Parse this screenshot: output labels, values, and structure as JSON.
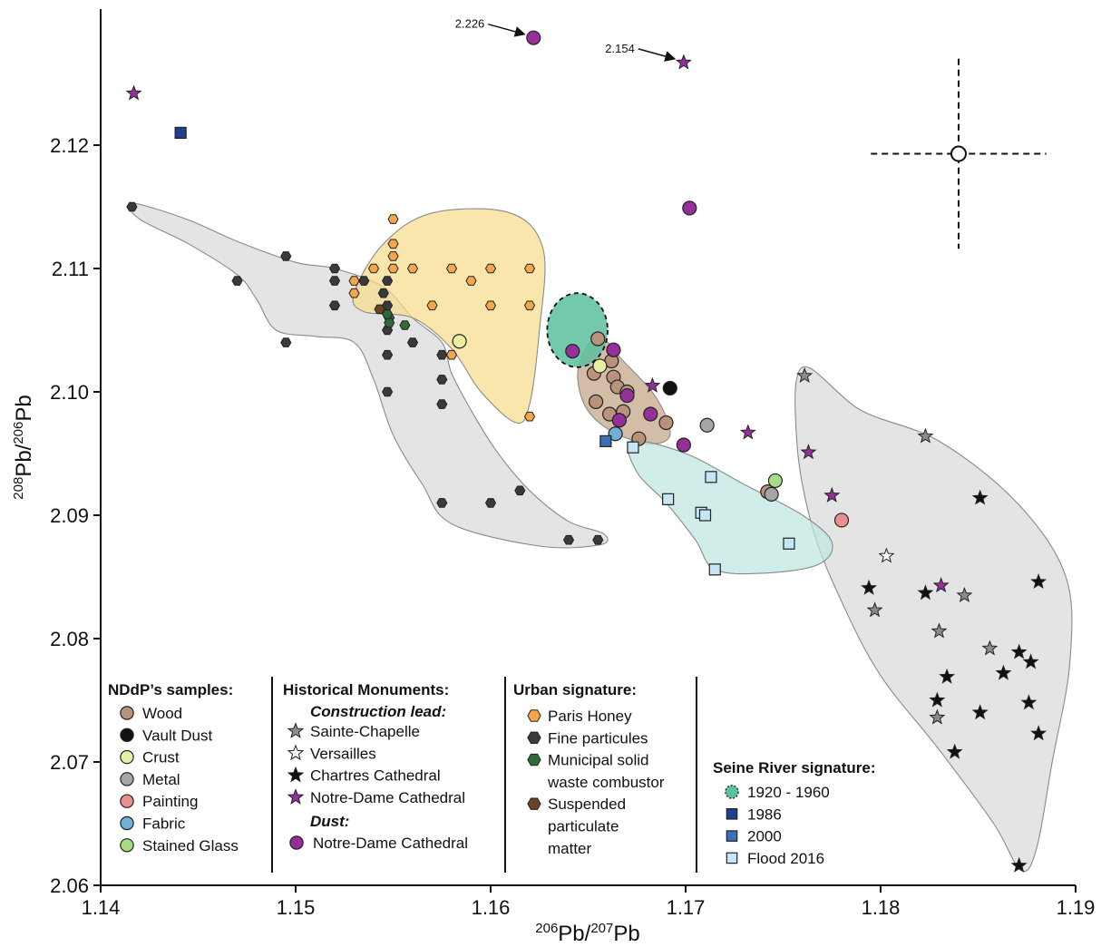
{
  "chart_data": {
    "type": "scatter",
    "xlabel": "206Pb/207Pb",
    "ylabel": "208Pb/206Pb",
    "xlim": [
      1.14,
      1.19
    ],
    "ylim": [
      2.06,
      2.13
    ],
    "x_ticks": [
      "1.14",
      "1.15",
      "1.16",
      "1.17",
      "1.18",
      "1.19"
    ],
    "y_ticks": [
      "2.06",
      "2.07",
      "2.08",
      "2.09",
      "2.10",
      "2.11",
      "2.12"
    ],
    "grid": false,
    "legend_position": "bottom-left",
    "regions": [
      {
        "name": "Fine particules field",
        "color": "#d9d9d9",
        "polygon": [
          [
            1.1416,
            2.1153
          ],
          [
            1.1444,
            2.114
          ],
          [
            1.147,
            2.1122
          ],
          [
            1.15,
            2.1105
          ],
          [
            1.152,
            2.11
          ],
          [
            1.1545,
            2.1085
          ],
          [
            1.156,
            2.106
          ],
          [
            1.1575,
            2.104
          ],
          [
            1.158,
            2.1015
          ],
          [
            1.159,
            2.0985
          ],
          [
            1.1603,
            2.0952
          ],
          [
            1.162,
            2.092
          ],
          [
            1.164,
            2.0895
          ],
          [
            1.1658,
            2.0885
          ],
          [
            1.1656,
            2.0876
          ],
          [
            1.1625,
            2.0875
          ],
          [
            1.158,
            2.0893
          ],
          [
            1.1565,
            2.0925
          ],
          [
            1.155,
            2.0965
          ],
          [
            1.154,
            2.101
          ],
          [
            1.153,
            2.104
          ],
          [
            1.151,
            2.1045
          ],
          [
            1.149,
            2.105
          ],
          [
            1.148,
            2.1075
          ],
          [
            1.147,
            2.1095
          ],
          [
            1.1445,
            2.112
          ],
          [
            1.142,
            2.114
          ]
        ]
      },
      {
        "name": "Paris Honey field",
        "color": "#f7dc8c",
        "polygon": [
          [
            1.153,
            2.108
          ],
          [
            1.1545,
            2.112
          ],
          [
            1.157,
            2.1145
          ],
          [
            1.161,
            2.1145
          ],
          [
            1.1627,
            2.1115
          ],
          [
            1.1625,
            2.105
          ],
          [
            1.162,
            2.099
          ],
          [
            1.1613,
            2.0975
          ],
          [
            1.1595,
            2.1
          ],
          [
            1.158,
            2.1035
          ],
          [
            1.156,
            2.106
          ],
          [
            1.1535,
            2.1065
          ]
        ]
      },
      {
        "name": "Chartres/Sainte-Chapelle field",
        "color": "#d9d9d9",
        "polygon": [
          [
            1.176,
            2.102
          ],
          [
            1.179,
            2.0985
          ],
          [
            1.183,
            2.096
          ],
          [
            1.187,
            2.091
          ],
          [
            1.1895,
            2.085
          ],
          [
            1.1897,
            2.078
          ],
          [
            1.1888,
            2.07
          ],
          [
            1.188,
            2.063
          ],
          [
            1.1872,
            2.0612
          ],
          [
            1.1858,
            2.065
          ],
          [
            1.183,
            2.071
          ],
          [
            1.18,
            2.077
          ],
          [
            1.178,
            2.083
          ],
          [
            1.1765,
            2.089
          ],
          [
            1.1757,
            2.096
          ]
        ]
      },
      {
        "name": "Wood field",
        "color": "#c4a485",
        "polygon": [
          [
            1.1655,
            2.1045
          ],
          [
            1.1668,
            2.1025
          ],
          [
            1.1685,
            2.0995
          ],
          [
            1.1692,
            2.0965
          ],
          [
            1.168,
            2.0958
          ],
          [
            1.166,
            2.097
          ],
          [
            1.1648,
            2.099
          ],
          [
            1.1645,
            2.102
          ]
        ]
      },
      {
        "name": "Flood 2016 field",
        "color": "#bfe6e0",
        "polygon": [
          [
            1.1672,
            2.096
          ],
          [
            1.17,
            2.095
          ],
          [
            1.173,
            2.0925
          ],
          [
            1.176,
            2.09
          ],
          [
            1.1775,
            2.0878
          ],
          [
            1.1768,
            2.086
          ],
          [
            1.174,
            2.0853
          ],
          [
            1.1715,
            2.0856
          ],
          [
            1.1705,
            2.088
          ],
          [
            1.169,
            2.091
          ],
          [
            1.1675,
            2.0935
          ]
        ]
      }
    ],
    "series_1920_1960_ellipse": {
      "cx": 1.16445,
      "cy": 2.105,
      "rx": 0.00155,
      "ry": 0.003,
      "color": "#5cbf9f"
    },
    "series": [
      {
        "name": "Wood",
        "marker": "circle",
        "color": "#b8927a",
        "points": [
          [
            1.1655,
            2.1043
          ],
          [
            1.1653,
            2.1015
          ],
          [
            1.1662,
            2.1025
          ],
          [
            1.1663,
            2.1012
          ],
          [
            1.1665,
            2.1004
          ],
          [
            1.1654,
            2.0992
          ],
          [
            1.1661,
            2.0982
          ],
          [
            1.167,
            2.1
          ],
          [
            1.1668,
            2.0984
          ],
          [
            1.1676,
            2.0962
          ],
          [
            1.169,
            2.0975
          ],
          [
            1.1742,
            2.0919
          ]
        ]
      },
      {
        "name": "Vault Dust",
        "marker": "circle",
        "color": "#111111",
        "points": [
          [
            1.1692,
            2.1003
          ]
        ]
      },
      {
        "name": "Crust",
        "marker": "circle",
        "color": "#e8efa3",
        "points": [
          [
            1.1584,
            2.1041
          ],
          [
            1.1656,
            2.1021
          ]
        ]
      },
      {
        "name": "Metal",
        "marker": "circle",
        "color": "#a6a6a6",
        "points": [
          [
            1.1711,
            2.0973
          ],
          [
            1.1744,
            2.0917
          ]
        ]
      },
      {
        "name": "Painting",
        "marker": "circle",
        "color": "#e8908f",
        "points": [
          [
            1.178,
            2.0896
          ]
        ]
      },
      {
        "name": "Fabric",
        "marker": "circle",
        "color": "#6fb0d4",
        "points": [
          [
            1.1664,
            2.0966
          ]
        ]
      },
      {
        "name": "Stained Glass",
        "marker": "circle",
        "color": "#a6dc84",
        "points": [
          [
            1.1746,
            2.0928
          ]
        ]
      },
      {
        "name": "Notre-Dame Cathedral (Dust)",
        "marker": "circle",
        "color": "#952f9a",
        "points": [
          [
            1.1622,
            2.1287
          ],
          [
            1.1702,
            2.1149
          ],
          [
            1.1642,
            2.1033
          ],
          [
            1.1663,
            2.1034
          ],
          [
            1.167,
            2.0997
          ],
          [
            1.1666,
            2.0977
          ],
          [
            1.1682,
            2.0982
          ],
          [
            1.1699,
            2.0957
          ]
        ]
      },
      {
        "name": "Sainte-Chapelle",
        "marker": "star",
        "color": "#8c8c8c",
        "points": [
          [
            1.1761,
            2.1013
          ],
          [
            1.1823,
            2.0964
          ],
          [
            1.1797,
            2.0823
          ],
          [
            1.183,
            2.0806
          ],
          [
            1.1843,
            2.0835
          ],
          [
            1.1856,
            2.0792
          ],
          [
            1.1829,
            2.0736
          ]
        ]
      },
      {
        "name": "Versailles",
        "marker": "star",
        "color": "#ffffff",
        "points": [
          [
            1.1803,
            2.0867
          ]
        ]
      },
      {
        "name": "Chartres Cathedral",
        "marker": "star",
        "color": "#111111",
        "points": [
          [
            1.1851,
            2.0914
          ],
          [
            1.1881,
            2.0846
          ],
          [
            1.1794,
            2.0841
          ],
          [
            1.1823,
            2.0837
          ],
          [
            1.1871,
            2.0789
          ],
          [
            1.1863,
            2.0772
          ],
          [
            1.1877,
            2.0781
          ],
          [
            1.1834,
            2.0769
          ],
          [
            1.1829,
            2.075
          ],
          [
            1.1876,
            2.0748
          ],
          [
            1.1851,
            2.074
          ],
          [
            1.1881,
            2.0723
          ],
          [
            1.1838,
            2.0708
          ],
          [
            1.1871,
            2.0616
          ]
        ]
      },
      {
        "name": "Notre-Dame Cathedral (Construction lead)",
        "marker": "star",
        "color": "#952f9a",
        "points": [
          [
            1.1417,
            2.1242
          ],
          [
            1.1699,
            2.1267
          ],
          [
            1.1683,
            2.1005
          ],
          [
            1.1732,
            2.0967
          ],
          [
            1.1763,
            2.0951
          ],
          [
            1.1775,
            2.0916
          ],
          [
            1.1831,
            2.0843
          ]
        ]
      },
      {
        "name": "Paris Honey",
        "marker": "hexagon",
        "color": "#f4a64a",
        "points": [
          [
            1.155,
            2.114
          ],
          [
            1.155,
            2.112
          ],
          [
            1.155,
            2.111
          ],
          [
            1.156,
            2.11
          ],
          [
            1.154,
            2.11
          ],
          [
            1.155,
            2.11
          ],
          [
            1.158,
            2.11
          ],
          [
            1.16,
            2.11
          ],
          [
            1.162,
            2.11
          ],
          [
            1.153,
            2.109
          ],
          [
            1.159,
            2.109
          ],
          [
            1.153,
            2.108
          ],
          [
            1.157,
            2.107
          ],
          [
            1.16,
            2.107
          ],
          [
            1.162,
            2.107
          ],
          [
            1.158,
            2.103
          ],
          [
            1.162,
            2.098
          ]
        ]
      },
      {
        "name": "Fine particules",
        "marker": "hexagon",
        "color": "#3a3a3a",
        "points": [
          [
            1.1416,
            2.115
          ],
          [
            1.1495,
            2.111
          ],
          [
            1.152,
            2.11
          ],
          [
            1.147,
            2.109
          ],
          [
            1.152,
            2.109
          ],
          [
            1.1535,
            2.109
          ],
          [
            1.1545,
            2.108
          ],
          [
            1.1547,
            2.109
          ],
          [
            1.152,
            2.107
          ],
          [
            1.1547,
            2.107
          ],
          [
            1.156,
            2.104
          ],
          [
            1.1495,
            2.104
          ],
          [
            1.1547,
            2.105
          ],
          [
            1.1547,
            2.103
          ],
          [
            1.1575,
            2.103
          ],
          [
            1.1575,
            2.101
          ],
          [
            1.1547,
            2.1
          ],
          [
            1.1575,
            2.099
          ],
          [
            1.1615,
            2.092
          ],
          [
            1.1575,
            2.091
          ],
          [
            1.16,
            2.091
          ],
          [
            1.164,
            2.088
          ],
          [
            1.1655,
            2.088
          ]
        ]
      },
      {
        "name": "Municipal solid waste combustor",
        "marker": "hexagon",
        "color": "#2f6b38",
        "points": [
          [
            1.1548,
            2.106
          ],
          [
            1.1556,
            2.1054
          ],
          [
            1.1547,
            2.1063
          ],
          [
            1.1548,
            2.1056
          ]
        ]
      },
      {
        "name": "Suspended particulate matter",
        "marker": "hexagon",
        "color": "#6b4326",
        "points": [
          [
            1.1543,
            2.1067
          ]
        ]
      },
      {
        "name": "1986",
        "marker": "square",
        "color": "#1f3f8f",
        "points": [
          [
            1.1441,
            2.121
          ]
        ]
      },
      {
        "name": "2000",
        "marker": "square",
        "color": "#3d6fb6",
        "points": [
          [
            1.1659,
            2.096
          ]
        ]
      },
      {
        "name": "Flood 2016",
        "marker": "square",
        "color": "#c7e6f5",
        "points": [
          [
            1.1673,
            2.0955
          ],
          [
            1.1713,
            2.0931
          ],
          [
            1.1691,
            2.0913
          ],
          [
            1.1708,
            2.0902
          ],
          [
            1.171,
            2.09
          ],
          [
            1.1753,
            2.0877
          ],
          [
            1.1715,
            2.0856
          ]
        ]
      }
    ],
    "annotations": [
      {
        "text": "2.226",
        "x": 1.1622,
        "y": 2.1287
      },
      {
        "text": "2.154",
        "x": 1.1699,
        "y": 2.1267
      }
    ],
    "error_cross": {
      "x": 1.184,
      "y": 2.1193,
      "x_half": 0.0045,
      "y_half": 0.0077
    }
  },
  "labels": {
    "x_main": "206Pb/207Pb",
    "x_sup1": "206",
    "x_base1": "Pb/",
    "x_sup2": "207",
    "x_base2": "Pb",
    "y_sup1": "208",
    "y_base1": "Pb/",
    "y_sup2": "206",
    "y_base2": "Pb"
  },
  "legend": {
    "nddp": {
      "title": "NDdP’s samples:",
      "items": [
        {
          "label": "Wood",
          "marker": "circle",
          "color": "#b8927a"
        },
        {
          "label": "Vault Dust",
          "marker": "circle",
          "color": "#111111"
        },
        {
          "label": "Crust",
          "marker": "circle",
          "color": "#e8efa3"
        },
        {
          "label": "Metal",
          "marker": "circle",
          "color": "#a6a6a6"
        },
        {
          "label": "Painting",
          "marker": "circle",
          "color": "#e8908f"
        },
        {
          "label": "Fabric",
          "marker": "circle",
          "color": "#6fb0d4"
        },
        {
          "label": "Stained Glass",
          "marker": "circle",
          "color": "#a6dc84"
        }
      ]
    },
    "historical": {
      "title": "Historical Monuments:",
      "sub1": "Construction lead:",
      "items1": [
        {
          "label": "Sainte-Chapelle",
          "marker": "star",
          "color": "#8c8c8c"
        },
        {
          "label": "Versailles",
          "marker": "star",
          "color": "#ffffff"
        },
        {
          "label": "Chartres Cathedral",
          "marker": "star",
          "color": "#111111"
        },
        {
          "label": "Notre-Dame Cathedral",
          "marker": "star",
          "color": "#952f9a"
        }
      ],
      "sub2": "Dust:",
      "items2": [
        {
          "label": "Notre-Dame Cathedral",
          "marker": "circle",
          "color": "#952f9a"
        }
      ]
    },
    "urban": {
      "title": "Urban signature:",
      "items": [
        {
          "lines": [
            "Paris Honey"
          ],
          "marker": "hexagon",
          "color": "#f4a64a"
        },
        {
          "lines": [
            "Fine particules"
          ],
          "marker": "hexagon",
          "color": "#3a3a3a"
        },
        {
          "lines": [
            "Municipal solid",
            "waste combustor"
          ],
          "marker": "hexagon",
          "color": "#2f6b38"
        },
        {
          "lines": [
            "Suspended",
            "particulate",
            "matter"
          ],
          "marker": "hexagon",
          "color": "#6b4326"
        }
      ]
    },
    "seine": {
      "title": "Seine River signature:",
      "items": [
        {
          "label": "1920 - 1960",
          "marker": "dashed-circle",
          "color": "#5cbf9f"
        },
        {
          "label": "1986",
          "marker": "square",
          "color": "#1f3f8f"
        },
        {
          "label": "2000",
          "marker": "square",
          "color": "#3d6fb6"
        },
        {
          "label": "Flood 2016",
          "marker": "square",
          "color": "#c7e6f5"
        }
      ]
    }
  }
}
